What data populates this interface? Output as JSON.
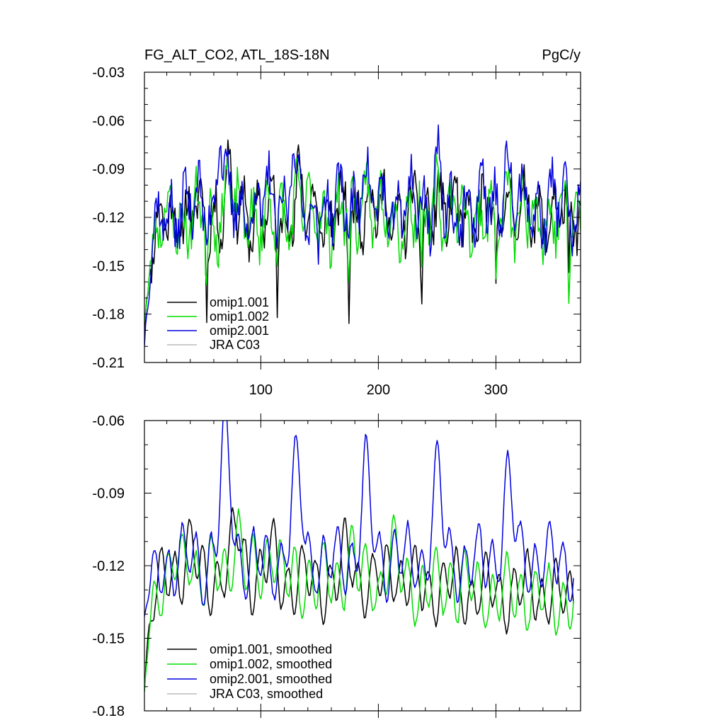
{
  "chart_data": [
    {
      "type": "line",
      "title": "FG_ALT_CO2, ATL_18S-18N",
      "units": "PgC/y",
      "xlabel": "",
      "ylabel": "",
      "xlim": [
        1,
        372
      ],
      "ylim": [
        -0.21,
        -0.03
      ],
      "xticks": [
        100,
        200,
        300
      ],
      "yticks": [
        -0.21,
        -0.18,
        -0.15,
        -0.12,
        -0.09,
        -0.06,
        -0.03
      ],
      "ytick_labels": [
        "-0.21",
        "-0.18",
        "-0.15",
        "-0.12",
        "-0.09",
        "-0.06",
        "-0.03"
      ],
      "grid": false,
      "legend_position": "bottom-left",
      "series": [
        {
          "name": "omip1.001",
          "color": "#000000",
          "base": -0.118,
          "amp": 0.014,
          "noise": 0.013,
          "seed": 11,
          "spinup_start": -0.19,
          "dips": [
            [
              54,
              -0.162
            ],
            [
              114,
              -0.163
            ],
            [
              175,
              -0.167
            ],
            [
              237,
              -0.17
            ],
            [
              300,
              -0.171
            ],
            [
              362,
              -0.171
            ]
          ],
          "peaks": [
            [
              72,
              -0.088
            ],
            [
              132,
              -0.094
            ],
            [
              190,
              -0.096
            ],
            [
              250,
              -0.097
            ],
            [
              310,
              -0.098
            ]
          ]
        },
        {
          "name": "omip1.002",
          "color": "#00dd00",
          "base": -0.119,
          "amp": 0.014,
          "noise": 0.013,
          "seed": 23,
          "spinup_start": -0.185,
          "dips": [
            [
              54,
              -0.162
            ],
            [
              114,
              -0.163
            ],
            [
              175,
              -0.167
            ],
            [
              237,
              -0.17
            ],
            [
              300,
              -0.171
            ],
            [
              362,
              -0.171
            ]
          ],
          "peaks": [
            [
              72,
              -0.088
            ],
            [
              132,
              -0.094
            ],
            [
              190,
              -0.096
            ],
            [
              250,
              -0.097
            ],
            [
              310,
              -0.098
            ]
          ]
        },
        {
          "name": "omip2.001",
          "color": "#0000dd",
          "base": -0.113,
          "amp": 0.016,
          "noise": 0.014,
          "seed": 37,
          "spinup_start": -0.2,
          "peaks": [
            [
              65,
              -0.06
            ],
            [
              127,
              -0.071
            ],
            [
              187,
              -0.077
            ],
            [
              249,
              -0.079
            ],
            [
              309,
              -0.078
            ]
          ],
          "dips": [
            [
              141,
              -0.152
            ],
            [
              264,
              -0.148
            ]
          ]
        },
        {
          "name": "JRA C03",
          "color": "#bbbbbb",
          "empty": true
        }
      ]
    },
    {
      "type": "line",
      "title": "",
      "xlabel": "",
      "ylabel": "",
      "xlim": [
        1,
        372
      ],
      "ylim": [
        -0.18,
        -0.06
      ],
      "xticks": [
        100,
        200,
        300
      ],
      "yticks": [
        -0.18,
        -0.15,
        -0.12,
        -0.09,
        -0.06
      ],
      "ytick_labels": [
        "-0.18",
        "-0.15",
        "-0.12",
        "-0.09",
        "-0.06"
      ],
      "grid": false,
      "legend_position": "bottom-left",
      "series": [
        {
          "name": "omip1.001, smoothed",
          "color": "#000000",
          "base": -0.121,
          "amp": 0.011,
          "noise": 0.003,
          "seed": 5,
          "spinup_start": -0.172,
          "trend": -0.012,
          "peaks": [
            [
              40,
              -0.112
            ],
            [
              80,
              -0.103
            ],
            [
              110,
              -0.11
            ],
            [
              175,
              -0.108
            ],
            [
              212,
              -0.11
            ],
            [
              262,
              -0.116
            ]
          ]
        },
        {
          "name": "omip1.002, smoothed",
          "color": "#00dd00",
          "base": -0.121,
          "amp": 0.011,
          "noise": 0.003,
          "seed": 8,
          "spinup_start": -0.172,
          "trend": -0.012,
          "peaks": [
            [
              40,
              -0.112
            ],
            [
              80,
              -0.103
            ],
            [
              110,
              -0.11
            ],
            [
              175,
              -0.108
            ],
            [
              212,
              -0.11
            ],
            [
              262,
              -0.116
            ]
          ]
        },
        {
          "name": "omip2.001, smoothed",
          "color": "#0000dd",
          "base": -0.118,
          "amp": 0.011,
          "noise": 0.003,
          "seed": 13,
          "spinup_start": -0.141,
          "peaks": [
            [
              70,
              -0.069
            ],
            [
              131,
              -0.079
            ],
            [
              190,
              -0.083
            ],
            [
              250,
              -0.084
            ],
            [
              311,
              -0.085
            ]
          ]
        },
        {
          "name": "JRA C03, smoothed",
          "color": "#bbbbbb",
          "empty": true
        }
      ]
    }
  ]
}
